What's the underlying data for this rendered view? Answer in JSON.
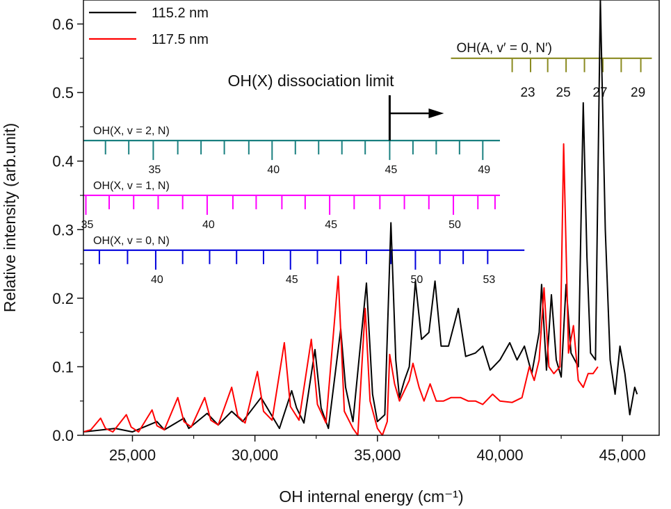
{
  "chart_data": {
    "type": "line",
    "xlabel": "OH internal energy (cm⁻¹)",
    "ylabel": "Relative intensity (arb.unit)",
    "xlim": [
      23000,
      46500
    ],
    "ylim": [
      0.0,
      0.635
    ],
    "x_ticks": [
      25000,
      30000,
      35000,
      40000,
      45000
    ],
    "x_tick_labels": [
      "25,000",
      "30,000",
      "35,000",
      "40,000",
      "45,000"
    ],
    "y_ticks": [
      0.0,
      0.1,
      0.2,
      0.3,
      0.4,
      0.5,
      0.6
    ],
    "y_tick_labels": [
      "0.0",
      "0.1",
      "0.2",
      "0.3",
      "0.4",
      "0.5",
      "0.6"
    ],
    "grid": false,
    "legend_position": "top-left",
    "series": [
      {
        "name": "115.2 nm",
        "color": "#000000",
        "points": [
          [
            23000,
            0.005
          ],
          [
            24300,
            0.01
          ],
          [
            25000,
            0.005
          ],
          [
            26000,
            0.02
          ],
          [
            26300,
            0.008
          ],
          [
            27100,
            0.025
          ],
          [
            27300,
            0.01
          ],
          [
            28050,
            0.032
          ],
          [
            28500,
            0.015
          ],
          [
            29050,
            0.035
          ],
          [
            29200,
            0.03
          ],
          [
            29500,
            0.02
          ],
          [
            30250,
            0.055
          ],
          [
            30500,
            0.04
          ],
          [
            31000,
            0.01
          ],
          [
            31500,
            0.065
          ],
          [
            31700,
            0.04
          ],
          [
            32000,
            0.018
          ],
          [
            32450,
            0.125
          ],
          [
            32700,
            0.04
          ],
          [
            33000,
            0.01
          ],
          [
            33500,
            0.155
          ],
          [
            33700,
            0.07
          ],
          [
            34000,
            0.02
          ],
          [
            34550,
            0.222
          ],
          [
            34800,
            0.06
          ],
          [
            35000,
            0.02
          ],
          [
            35300,
            0.03
          ],
          [
            35550,
            0.31
          ],
          [
            35750,
            0.11
          ],
          [
            35900,
            0.055
          ],
          [
            36100,
            0.08
          ],
          [
            36300,
            0.1
          ],
          [
            36550,
            0.225
          ],
          [
            36800,
            0.14
          ],
          [
            37100,
            0.15
          ],
          [
            37350,
            0.225
          ],
          [
            37600,
            0.13
          ],
          [
            37900,
            0.13
          ],
          [
            38300,
            0.185
          ],
          [
            38600,
            0.115
          ],
          [
            39000,
            0.12
          ],
          [
            39300,
            0.13
          ],
          [
            39600,
            0.095
          ],
          [
            40000,
            0.11
          ],
          [
            40400,
            0.135
          ],
          [
            40700,
            0.11
          ],
          [
            41000,
            0.13
          ],
          [
            41300,
            0.09
          ],
          [
            41600,
            0.15
          ],
          [
            41700,
            0.22
          ],
          [
            41900,
            0.095
          ],
          [
            42100,
            0.205
          ],
          [
            42300,
            0.11
          ],
          [
            42500,
            0.085
          ],
          [
            42700,
            0.22
          ],
          [
            42900,
            0.12
          ],
          [
            43200,
            0.1
          ],
          [
            43400,
            0.485
          ],
          [
            43550,
            0.26
          ],
          [
            43700,
            0.12
          ],
          [
            43900,
            0.11
          ],
          [
            44100,
            0.635
          ],
          [
            44300,
            0.3
          ],
          [
            44500,
            0.11
          ],
          [
            44700,
            0.06
          ],
          [
            44900,
            0.13
          ],
          [
            45100,
            0.09
          ],
          [
            45300,
            0.03
          ],
          [
            45500,
            0.07
          ],
          [
            45600,
            0.06
          ]
        ]
      },
      {
        "name": "117.5 nm",
        "color": "#ff0000",
        "points": [
          [
            23000,
            0.005
          ],
          [
            23300,
            0.008
          ],
          [
            23700,
            0.025
          ],
          [
            23900,
            0.01
          ],
          [
            24200,
            0.005
          ],
          [
            24750,
            0.03
          ],
          [
            24950,
            0.012
          ],
          [
            25250,
            0.005
          ],
          [
            25800,
            0.037
          ],
          [
            26000,
            0.014
          ],
          [
            26300,
            0.008
          ],
          [
            26850,
            0.055
          ],
          [
            27100,
            0.02
          ],
          [
            27400,
            0.012
          ],
          [
            27950,
            0.055
          ],
          [
            28200,
            0.022
          ],
          [
            28500,
            0.015
          ],
          [
            29050,
            0.07
          ],
          [
            29300,
            0.028
          ],
          [
            29600,
            0.018
          ],
          [
            30100,
            0.093
          ],
          [
            30350,
            0.035
          ],
          [
            30700,
            0.022
          ],
          [
            31200,
            0.135
          ],
          [
            31450,
            0.042
          ],
          [
            31800,
            0.022
          ],
          [
            32300,
            0.14
          ],
          [
            32550,
            0.045
          ],
          [
            32900,
            0.018
          ],
          [
            33400,
            0.232
          ],
          [
            33650,
            0.035
          ],
          [
            34000,
            0.01
          ],
          [
            34200,
            0.0
          ],
          [
            34500,
            0.185
          ],
          [
            34700,
            0.05
          ],
          [
            35000,
            0.01
          ],
          [
            35200,
            0.0
          ],
          [
            35400,
            0.02
          ],
          [
            35500,
            0.118
          ],
          [
            35700,
            0.075
          ],
          [
            35900,
            0.05
          ],
          [
            36300,
            0.08
          ],
          [
            36450,
            0.105
          ],
          [
            36700,
            0.07
          ],
          [
            36900,
            0.05
          ],
          [
            37150,
            0.075
          ],
          [
            37400,
            0.05
          ],
          [
            37700,
            0.05
          ],
          [
            38000,
            0.055
          ],
          [
            38400,
            0.055
          ],
          [
            38700,
            0.05
          ],
          [
            39000,
            0.05
          ],
          [
            39300,
            0.045
          ],
          [
            39700,
            0.06
          ],
          [
            40000,
            0.05
          ],
          [
            40500,
            0.048
          ],
          [
            40900,
            0.055
          ],
          [
            41200,
            0.1
          ],
          [
            41400,
            0.08
          ],
          [
            41600,
            0.11
          ],
          [
            41800,
            0.215
          ],
          [
            42000,
            0.1
          ],
          [
            42200,
            0.09
          ],
          [
            42450,
            0.1
          ],
          [
            42600,
            0.425
          ],
          [
            42800,
            0.12
          ],
          [
            43000,
            0.16
          ],
          [
            43200,
            0.08
          ],
          [
            43400,
            0.07
          ],
          [
            43600,
            0.09
          ],
          [
            43800,
            0.09
          ],
          [
            44000,
            0.1
          ]
        ]
      }
    ],
    "annotations": {
      "dissociation_label": "OH(X) dissociation limit",
      "dissociation_energy": 35500,
      "ladders": [
        {
          "title": "OH(X, v = 2, N)",
          "color": "#1a8080",
          "y": 0.43,
          "x_end": 40000,
          "ticks": [
            23900,
            24850,
            25850,
            26850,
            27800,
            28750,
            29750,
            30700,
            31650,
            32600,
            33550,
            34500,
            35500,
            36450,
            37400,
            38350,
            39300
          ],
          "long_ticks": [
            25850,
            30700,
            35500,
            39300
          ],
          "labels": [
            {
              "x": 25850,
              "text": "35"
            },
            {
              "x": 30700,
              "text": "40"
            },
            {
              "x": 35500,
              "text": "45"
            },
            {
              "x": 39300,
              "text": "49"
            }
          ]
        },
        {
          "title": "OH(X, v = 1, N)",
          "color": "#ff00ff",
          "y": 0.35,
          "x_end": 40000,
          "ticks": [
            23100,
            24050,
            25050,
            26050,
            27050,
            28050,
            29100,
            30050,
            31100,
            32050,
            33050,
            34050,
            35100,
            36100,
            37100,
            38100,
            39100,
            39800
          ],
          "long_ticks": [
            23100,
            28050,
            33050,
            38100
          ],
          "labels": [
            {
              "x": 23100,
              "text": "35"
            },
            {
              "x": 28050,
              "text": "40"
            },
            {
              "x": 33050,
              "text": "45"
            },
            {
              "x": 38100,
              "text": "50"
            }
          ]
        },
        {
          "title": "OH(X, v = 0, N)",
          "color": "#0000dd",
          "y": 0.27,
          "x_end": 41000,
          "ticks": [
            23650,
            24800,
            25950,
            27050,
            28150,
            29250,
            30350,
            31450,
            32550,
            33500,
            34550,
            35550,
            36550,
            37550,
            38500,
            39500
          ],
          "long_ticks": [
            25950,
            31450,
            36550
          ],
          "labels": [
            {
              "x": 25950,
              "text": "40"
            },
            {
              "x": 31450,
              "text": "45"
            },
            {
              "x": 36550,
              "text": "50"
            },
            {
              "x": 39500,
              "text": "53"
            }
          ]
        },
        {
          "title": "OH(A, v′ = 0, N′)",
          "color": "#8a8a20",
          "y": 0.55,
          "x_start": 38000,
          "x_end": 46200,
          "ticks": [
            40500,
            41250,
            41950,
            42700,
            43450,
            44200,
            44950,
            45750
          ],
          "labels": [
            {
              "x": 41250,
              "text": "23"
            },
            {
              "x": 42700,
              "text": "25"
            },
            {
              "x": 44200,
              "text": "27"
            },
            {
              "x": 45750,
              "text": "29"
            }
          ]
        }
      ]
    }
  }
}
